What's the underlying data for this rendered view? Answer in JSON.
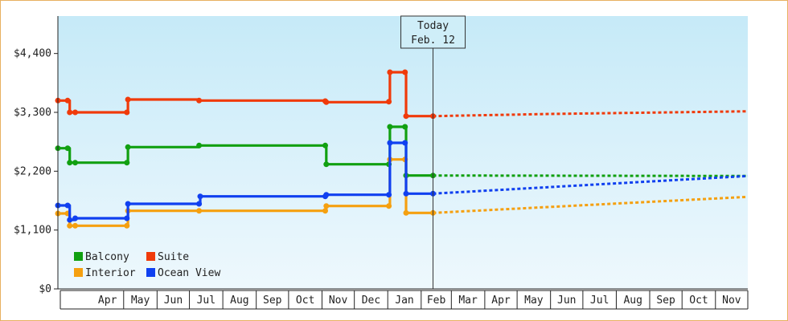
{
  "chart_data": {
    "type": "line",
    "title": "",
    "xlabel": "",
    "ylabel": "",
    "ylim": [
      0,
      5100
    ],
    "y_ticks": [
      {
        "value": 0,
        "label": "$0"
      },
      {
        "value": 1100,
        "label": "$1,100"
      },
      {
        "value": 2200,
        "label": "$2,200"
      },
      {
        "value": 3300,
        "label": "$3,300"
      },
      {
        "value": 4400,
        "label": "$4,400"
      }
    ],
    "x_domain": [
      "2025-03-01",
      "2026-12-01"
    ],
    "x_ticks": [
      {
        "label": "Apr",
        "start": "2025-04-01",
        "end": "2025-05-01"
      },
      {
        "label": "May",
        "start": "2025-05-01",
        "end": "2025-06-01"
      },
      {
        "label": "Jun",
        "start": "2025-06-01",
        "end": "2025-07-01"
      },
      {
        "label": "Jul",
        "start": "2025-07-01",
        "end": "2025-08-01"
      },
      {
        "label": "Aug",
        "start": "2025-08-01",
        "end": "2025-09-01"
      },
      {
        "label": "Sep",
        "start": "2025-09-01",
        "end": "2025-10-01"
      },
      {
        "label": "Oct",
        "start": "2025-10-01",
        "end": "2025-11-01"
      },
      {
        "label": "Nov",
        "start": "2025-11-01",
        "end": "2025-12-01"
      },
      {
        "label": "Dec",
        "start": "2025-12-01",
        "end": "2026-01-01"
      },
      {
        "label": "Jan",
        "start": "2026-01-01",
        "end": "2026-02-01"
      },
      {
        "label": "Feb",
        "start": "2026-02-01",
        "end": "2026-03-01"
      },
      {
        "label": "Mar",
        "start": "2026-03-01",
        "end": "2026-04-01"
      },
      {
        "label": "Apr",
        "start": "2026-04-01",
        "end": "2026-05-01"
      },
      {
        "label": "May",
        "start": "2026-05-01",
        "end": "2026-06-01"
      },
      {
        "label": "Jun",
        "start": "2026-06-01",
        "end": "2026-07-01"
      },
      {
        "label": "Jul",
        "start": "2026-07-01",
        "end": "2026-08-01"
      },
      {
        "label": "Aug",
        "start": "2026-08-01",
        "end": "2026-09-01"
      },
      {
        "label": "Sep",
        "start": "2026-09-01",
        "end": "2026-10-01"
      },
      {
        "label": "Oct",
        "start": "2026-10-01",
        "end": "2026-11-01"
      },
      {
        "label": "Nov",
        "start": "2026-11-01",
        "end": "2026-12-01"
      }
    ],
    "today": {
      "date": "2026-02-12",
      "line1": "Today",
      "line2": "Feb. 12"
    },
    "legend": {
      "placement": "bottom-left"
    },
    "grid": false,
    "series": [
      {
        "name": "Balcony",
        "color": "#11a011",
        "history": [
          [
            "2025-03-01",
            2630
          ],
          [
            "2025-03-10",
            2630
          ],
          [
            "2025-03-12",
            2360
          ],
          [
            "2025-03-17",
            2360
          ],
          [
            "2025-05-04",
            2360
          ],
          [
            "2025-05-05",
            2650
          ],
          [
            "2025-07-10",
            2680
          ],
          [
            "2025-11-04",
            2680
          ],
          [
            "2025-11-05",
            2330
          ],
          [
            "2026-01-02",
            2330
          ],
          [
            "2026-01-03",
            3030
          ],
          [
            "2026-01-17",
            3030
          ],
          [
            "2026-01-18",
            2120
          ],
          [
            "2026-02-12",
            2120
          ]
        ],
        "forecast": [
          [
            "2026-02-12",
            2120
          ],
          [
            "2026-12-01",
            2110
          ]
        ]
      },
      {
        "name": "Suite",
        "color": "#f03a0a",
        "history": [
          [
            "2025-03-01",
            3520
          ],
          [
            "2025-03-10",
            3520
          ],
          [
            "2025-03-12",
            3300
          ],
          [
            "2025-03-17",
            3300
          ],
          [
            "2025-05-04",
            3300
          ],
          [
            "2025-05-05",
            3540
          ],
          [
            "2025-07-10",
            3520
          ],
          [
            "2025-11-04",
            3510
          ],
          [
            "2025-11-05",
            3490
          ],
          [
            "2026-01-02",
            3500
          ],
          [
            "2026-01-03",
            4050
          ],
          [
            "2026-01-17",
            4050
          ],
          [
            "2026-01-18",
            3230
          ],
          [
            "2026-02-12",
            3230
          ]
        ],
        "forecast": [
          [
            "2026-02-12",
            3230
          ],
          [
            "2026-06-01",
            3270
          ],
          [
            "2026-12-01",
            3320
          ]
        ]
      },
      {
        "name": "Interior",
        "color": "#f5a010",
        "history": [
          [
            "2025-03-01",
            1410
          ],
          [
            "2025-03-10",
            1410
          ],
          [
            "2025-03-12",
            1180
          ],
          [
            "2025-03-17",
            1180
          ],
          [
            "2025-05-04",
            1180
          ],
          [
            "2025-05-05",
            1460
          ],
          [
            "2025-07-10",
            1460
          ],
          [
            "2025-11-04",
            1460
          ],
          [
            "2025-11-05",
            1550
          ],
          [
            "2026-01-02",
            1550
          ],
          [
            "2026-01-03",
            2420
          ],
          [
            "2026-01-17",
            2420
          ],
          [
            "2026-01-18",
            1420
          ],
          [
            "2026-02-12",
            1420
          ]
        ],
        "forecast": [
          [
            "2026-02-12",
            1420
          ],
          [
            "2026-12-01",
            1720
          ]
        ]
      },
      {
        "name": "Ocean View",
        "color": "#1040f0",
        "history": [
          [
            "2025-03-01",
            1560
          ],
          [
            "2025-03-10",
            1560
          ],
          [
            "2025-03-12",
            1290
          ],
          [
            "2025-03-17",
            1320
          ],
          [
            "2025-05-04",
            1320
          ],
          [
            "2025-05-05",
            1590
          ],
          [
            "2025-07-10",
            1590
          ],
          [
            "2025-07-11",
            1730
          ],
          [
            "2025-11-04",
            1730
          ],
          [
            "2025-11-05",
            1760
          ],
          [
            "2026-01-02",
            1760
          ],
          [
            "2026-01-03",
            2730
          ],
          [
            "2026-01-17",
            2730
          ],
          [
            "2026-01-18",
            1780
          ],
          [
            "2026-02-12",
            1780
          ]
        ],
        "forecast": [
          [
            "2026-02-12",
            1780
          ],
          [
            "2026-12-01",
            2110
          ]
        ]
      }
    ]
  }
}
